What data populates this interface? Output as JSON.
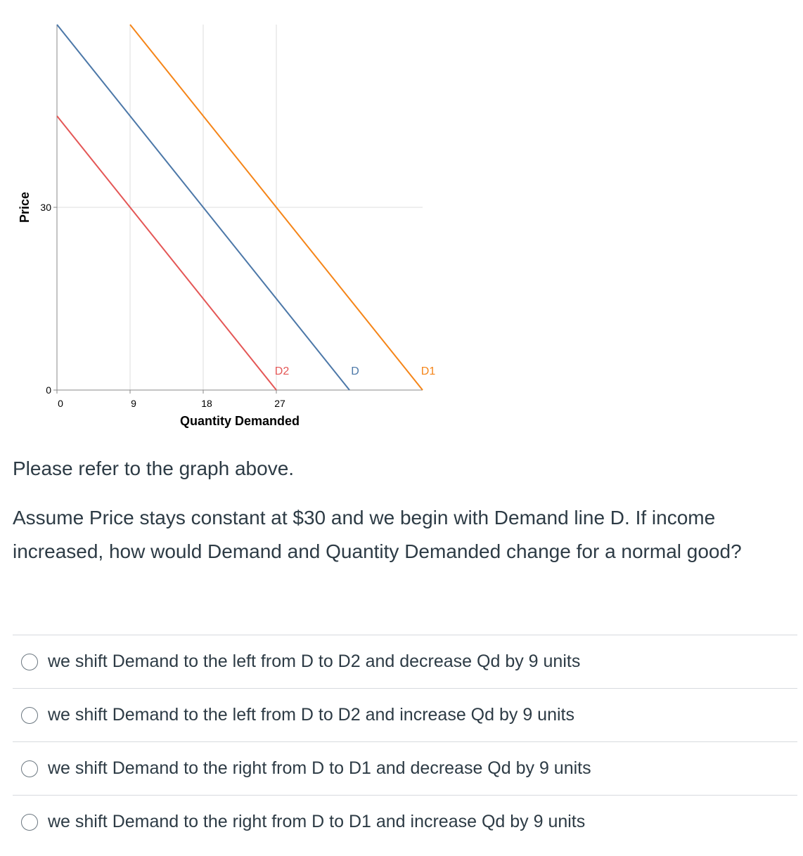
{
  "chart_data": {
    "type": "line",
    "xlabel": "Quantity Demanded",
    "ylabel": "Price",
    "x_ticks": [
      0,
      9,
      18,
      27
    ],
    "y_ticks": [
      0,
      30
    ],
    "xlim": [
      0,
      45
    ],
    "ylim": [
      0,
      60
    ],
    "grid": true,
    "series": [
      {
        "name": "D2",
        "color": "#e45756",
        "x": [
          0,
          27
        ],
        "y": [
          45,
          0
        ]
      },
      {
        "name": "D",
        "color": "#4c78a8",
        "x": [
          0,
          36
        ],
        "y": [
          60,
          0
        ]
      },
      {
        "name": "D1",
        "color": "#f58518",
        "x": [
          0,
          45
        ],
        "y": [
          75,
          0
        ]
      }
    ]
  },
  "question": {
    "intro": "Please refer to the graph above.",
    "text": "Assume Price stays constant at $30 and we begin with Demand line D. If income increased, how would Demand and Quantity Demanded change for a normal good?"
  },
  "answers": [
    {
      "label": "we shift Demand to the left from D to D2 and decrease Qd by 9 units"
    },
    {
      "label": "we shift Demand to the left from D to D2 and increase Qd by 9 units"
    },
    {
      "label": "we shift Demand to the right from D to D1 and decrease Qd by 9 units"
    },
    {
      "label": "we shift Demand to the right from D to D1 and increase Qd by 9 units"
    }
  ]
}
